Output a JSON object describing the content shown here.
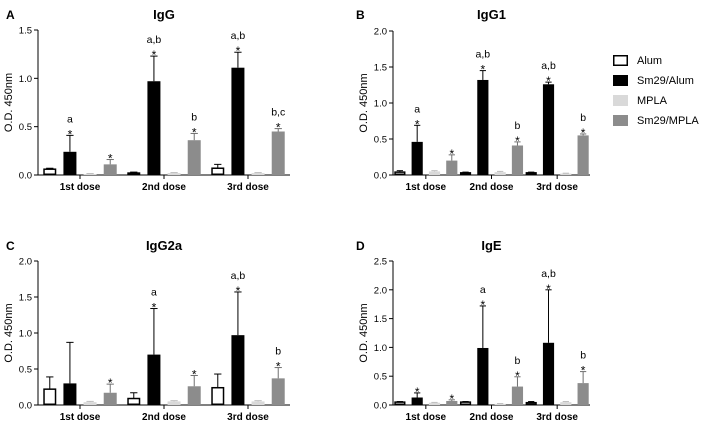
{
  "chart_data": [
    {
      "type": "bar",
      "panel_letter": "A",
      "title": "IgG",
      "ylabel": "O.D. 450nm",
      "xlabel": "",
      "ylim": [
        0,
        1.5
      ],
      "ytick_labels": [
        "0.0",
        "0.5",
        "1.0",
        "1.5"
      ],
      "ytick_values": [
        0,
        0.5,
        1.0,
        1.5
      ],
      "categories": [
        "1st dose",
        "2nd dose",
        "3rd dose"
      ],
      "series": [
        {
          "name": "Alum",
          "values": [
            0.06,
            0.02,
            0.07
          ],
          "errors": [
            0.01,
            0.01,
            0.04
          ],
          "stars": [
            false,
            false,
            false
          ],
          "letters": [
            "",
            "",
            ""
          ]
        },
        {
          "name": "Sm29/Alum",
          "values": [
            0.24,
            0.97,
            1.11
          ],
          "errors": [
            0.17,
            0.26,
            0.16
          ],
          "stars": [
            true,
            true,
            true
          ],
          "letters": [
            "a",
            "a,b",
            "a,b"
          ]
        },
        {
          "name": "MPLA",
          "values": [
            0.01,
            0.02,
            0.02
          ],
          "errors": [
            0.005,
            0.005,
            0.005
          ],
          "stars": [
            false,
            false,
            false
          ],
          "letters": [
            "",
            "",
            ""
          ]
        },
        {
          "name": "Sm29/MPLA",
          "values": [
            0.11,
            0.36,
            0.45
          ],
          "errors": [
            0.05,
            0.07,
            0.03
          ],
          "stars": [
            true,
            true,
            true
          ],
          "letters": [
            "",
            "b",
            "b,c"
          ]
        }
      ]
    },
    {
      "type": "bar",
      "panel_letter": "B",
      "title": "IgG1",
      "ylabel": "O.D. 450nm",
      "xlabel": "",
      "ylim": [
        0,
        2.0
      ],
      "ytick_labels": [
        "0.0",
        "0.5",
        "1.0",
        "1.5",
        "2.0"
      ],
      "ytick_values": [
        0,
        0.5,
        1.0,
        1.5,
        2.0
      ],
      "categories": [
        "1st dose",
        "2nd dose",
        "3rd dose"
      ],
      "series": [
        {
          "name": "Alum",
          "values": [
            0.04,
            0.03,
            0.03
          ],
          "errors": [
            0.02,
            0.01,
            0.01
          ],
          "stars": [
            false,
            false,
            false
          ],
          "letters": [
            "",
            "",
            ""
          ]
        },
        {
          "name": "Sm29/Alum",
          "values": [
            0.46,
            1.32,
            1.26
          ],
          "errors": [
            0.23,
            0.13,
            0.03
          ],
          "stars": [
            true,
            true,
            true
          ],
          "letters": [
            "a",
            "a,b",
            "a,b"
          ]
        },
        {
          "name": "MPLA",
          "values": [
            0.05,
            0.04,
            0.02
          ],
          "errors": [
            0.01,
            0.01,
            0.005
          ],
          "stars": [
            false,
            false,
            false
          ],
          "letters": [
            "",
            "",
            ""
          ]
        },
        {
          "name": "Sm29/MPLA",
          "values": [
            0.2,
            0.41,
            0.55
          ],
          "errors": [
            0.08,
            0.05,
            0.02
          ],
          "stars": [
            true,
            true,
            true
          ],
          "letters": [
            "",
            "b",
            "b"
          ]
        }
      ]
    },
    {
      "type": "bar",
      "panel_letter": "C",
      "title": "IgG2a",
      "ylabel": "O.D. 450nm",
      "xlabel": "",
      "ylim": [
        0,
        2.0
      ],
      "ytick_labels": [
        "0.0",
        "0.5",
        "1.0",
        "1.5",
        "2.0"
      ],
      "ytick_values": [
        0,
        0.5,
        1.0,
        1.5,
        2.0
      ],
      "categories": [
        "1st dose",
        "2nd dose",
        "3rd dose"
      ],
      "series": [
        {
          "name": "Alum",
          "values": [
            0.22,
            0.09,
            0.24
          ],
          "errors": [
            0.17,
            0.08,
            0.19
          ],
          "stars": [
            false,
            false,
            false
          ],
          "letters": [
            "",
            "",
            ""
          ]
        },
        {
          "name": "Sm29/Alum",
          "values": [
            0.3,
            0.7,
            0.97
          ],
          "errors": [
            0.57,
            0.64,
            0.6
          ],
          "stars": [
            false,
            true,
            true
          ],
          "letters": [
            "",
            "a",
            "a,b"
          ]
        },
        {
          "name": "MPLA",
          "values": [
            0.04,
            0.05,
            0.05
          ],
          "errors": [
            0.01,
            0.01,
            0.01
          ],
          "stars": [
            false,
            false,
            false
          ],
          "letters": [
            "",
            "",
            ""
          ]
        },
        {
          "name": "Sm29/MPLA",
          "values": [
            0.17,
            0.26,
            0.37
          ],
          "errors": [
            0.12,
            0.15,
            0.15
          ],
          "stars": [
            true,
            true,
            true
          ],
          "letters": [
            "",
            "",
            "b"
          ]
        }
      ]
    },
    {
      "type": "bar",
      "panel_letter": "D",
      "title": "IgE",
      "ylabel": "O.D. 450nm",
      "xlabel": "",
      "ylim": [
        0,
        2.5
      ],
      "ytick_labels": [
        "0.0",
        "0.5",
        "1.0",
        "1.5",
        "2.0",
        "2.5"
      ],
      "ytick_values": [
        0,
        0.5,
        1.0,
        1.5,
        2.0,
        2.5
      ],
      "categories": [
        "1st dose",
        "2nd dose",
        "3rd dose"
      ],
      "series": [
        {
          "name": "Alum",
          "values": [
            0.05,
            0.05,
            0.04
          ],
          "errors": [
            0.01,
            0.01,
            0.02
          ],
          "stars": [
            false,
            false,
            false
          ],
          "letters": [
            "",
            "",
            ""
          ]
        },
        {
          "name": "Sm29/Alum",
          "values": [
            0.13,
            0.99,
            1.08
          ],
          "errors": [
            0.08,
            0.73,
            0.92
          ],
          "stars": [
            true,
            true,
            true
          ],
          "letters": [
            "",
            "a",
            "a,b"
          ]
        },
        {
          "name": "MPLA",
          "values": [
            0.04,
            0.02,
            0.05
          ],
          "errors": [
            0.005,
            0.005,
            0.01
          ],
          "stars": [
            false,
            false,
            false
          ],
          "letters": [
            "",
            "",
            ""
          ]
        },
        {
          "name": "Sm29/MPLA",
          "values": [
            0.07,
            0.32,
            0.38
          ],
          "errors": [
            0.02,
            0.17,
            0.2
          ],
          "stars": [
            true,
            true,
            true
          ],
          "letters": [
            "",
            "b",
            "b"
          ]
        }
      ]
    }
  ],
  "legend": {
    "placement": "right",
    "entries": [
      {
        "name": "Alum",
        "fill": "#ffffff",
        "stroke": "#000000"
      },
      {
        "name": "Sm29/Alum",
        "fill": "#000000",
        "stroke": "#000000"
      },
      {
        "name": "MPLA",
        "fill": "#d9d9d9",
        "stroke": "#d9d9d9"
      },
      {
        "name": "Sm29/MPLA",
        "fill": "#8c8c8c",
        "stroke": "#8c8c8c"
      }
    ]
  },
  "colors": {
    "Alum": "#ffffff",
    "Sm29/Alum": "#000000",
    "MPLA": "#d9d9d9",
    "Sm29/MPLA": "#8c8c8c",
    "axis": "#000000",
    "text": "#000000"
  }
}
